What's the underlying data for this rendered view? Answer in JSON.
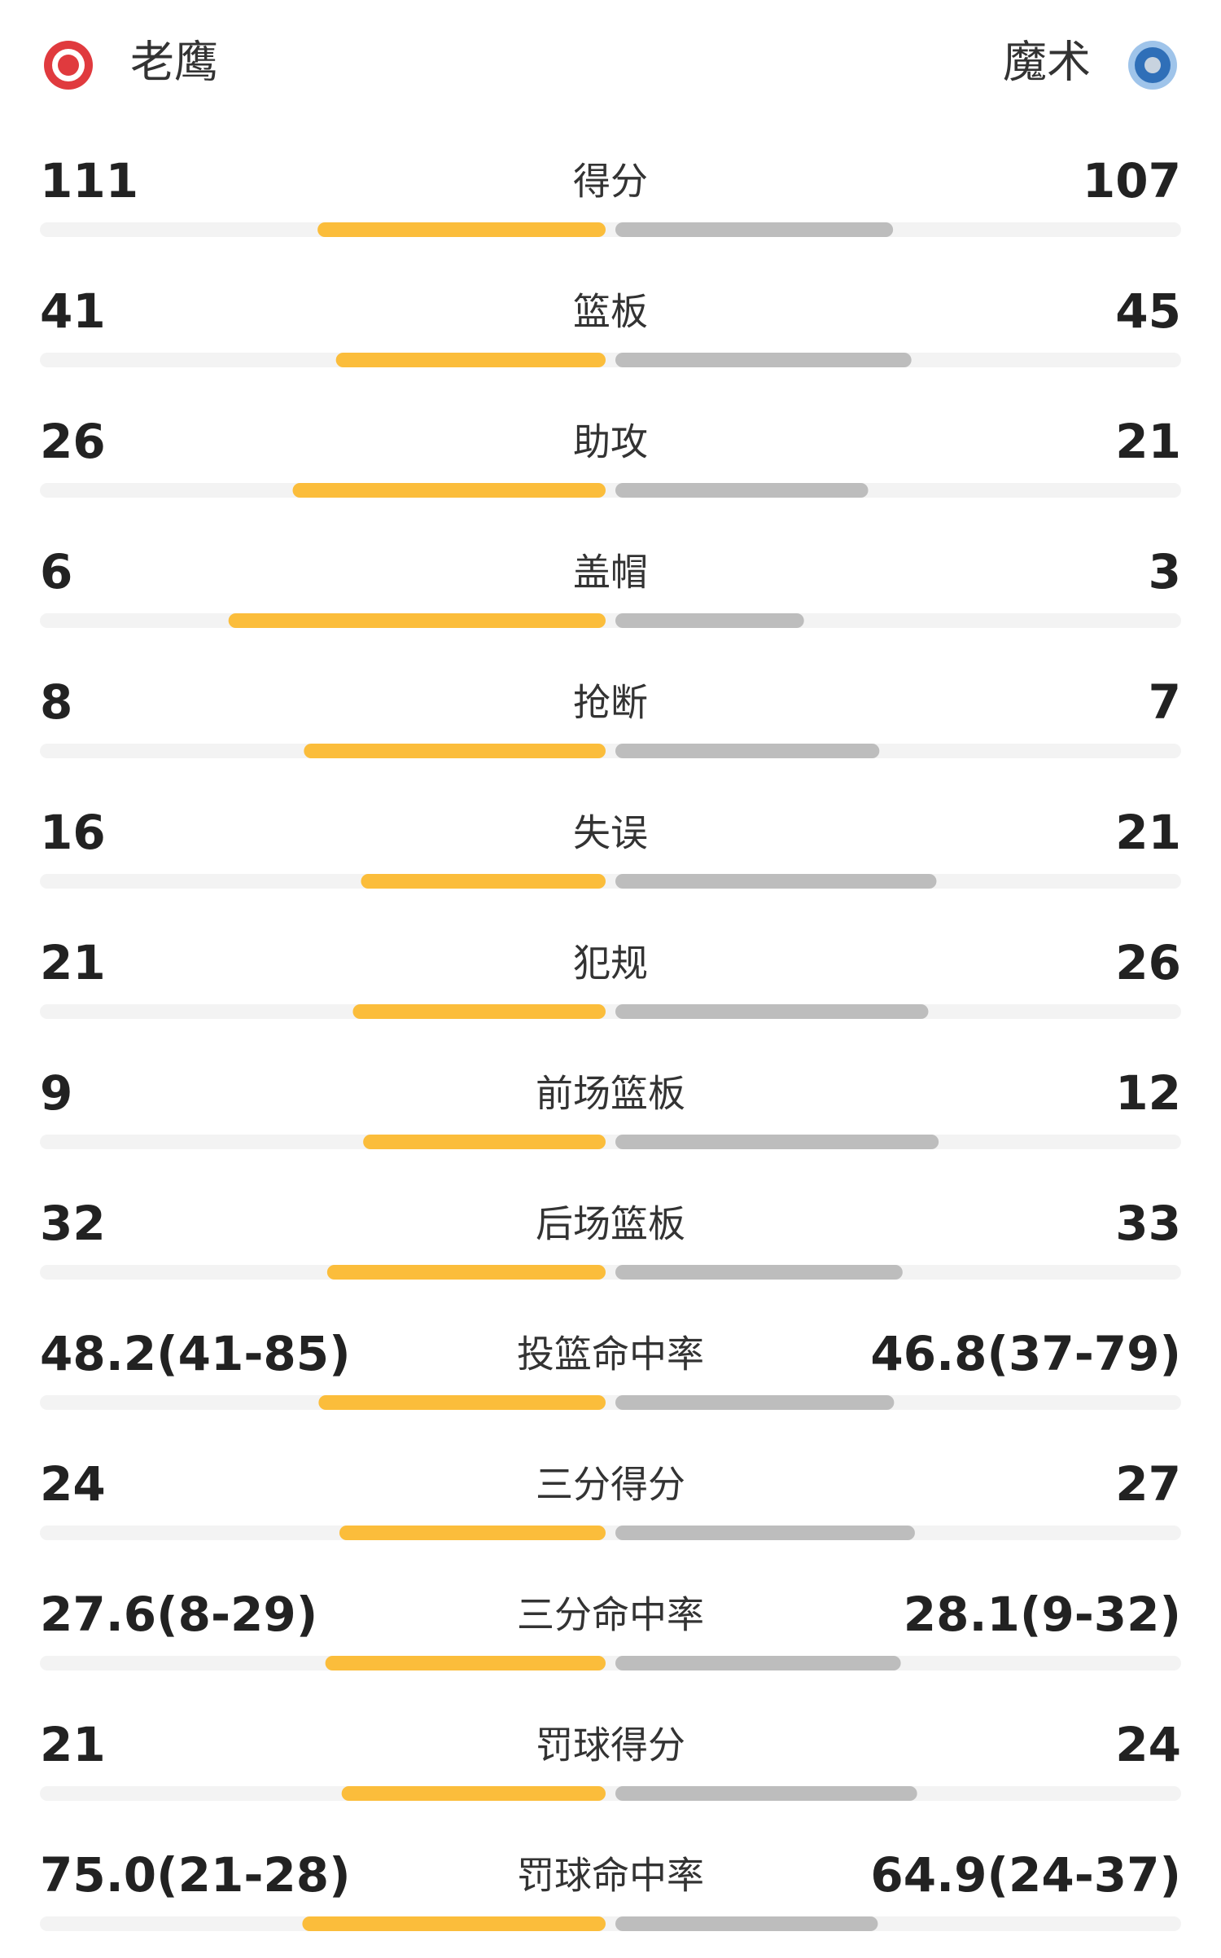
{
  "header": {
    "home": "老鹰",
    "away": "魔术"
  },
  "rows": [
    {
      "name": "得分",
      "values": [
        111,
        107
      ]
    },
    {
      "name": "篮板",
      "values": [
        41,
        45
      ]
    },
    {
      "name": "助攻",
      "values": [
        26,
        21
      ]
    },
    {
      "name": "盖帽",
      "values": [
        6,
        3
      ]
    },
    {
      "name": "抢断",
      "values": [
        8,
        7
      ]
    },
    {
      "name": "失误",
      "values": [
        16,
        21
      ]
    },
    {
      "name": "犯规",
      "values": [
        21,
        26
      ]
    },
    {
      "name": "前场篮板",
      "values": [
        9,
        12
      ]
    },
    {
      "name": "后场篮板",
      "values": [
        32,
        33
      ]
    },
    {
      "name": "投篮命中率",
      "values": [
        48.2,
        46.8
      ],
      "value_labels": [
        "48.2(41-85)",
        "46.8(37-79)"
      ]
    },
    {
      "name": "三分得分",
      "values": [
        24,
        27
      ]
    },
    {
      "name": "三分命中率",
      "values": [
        27.6,
        28.1
      ],
      "value_labels": [
        "27.6(8-29)",
        "28.1(9-32)"
      ]
    },
    {
      "name": "罚球得分",
      "values": [
        21,
        24
      ]
    },
    {
      "name": "罚球命中率",
      "values": [
        75.0,
        64.9
      ],
      "value_labels": [
        "75.0(21-28)",
        "64.9(24-37)"
      ]
    }
  ]
}
